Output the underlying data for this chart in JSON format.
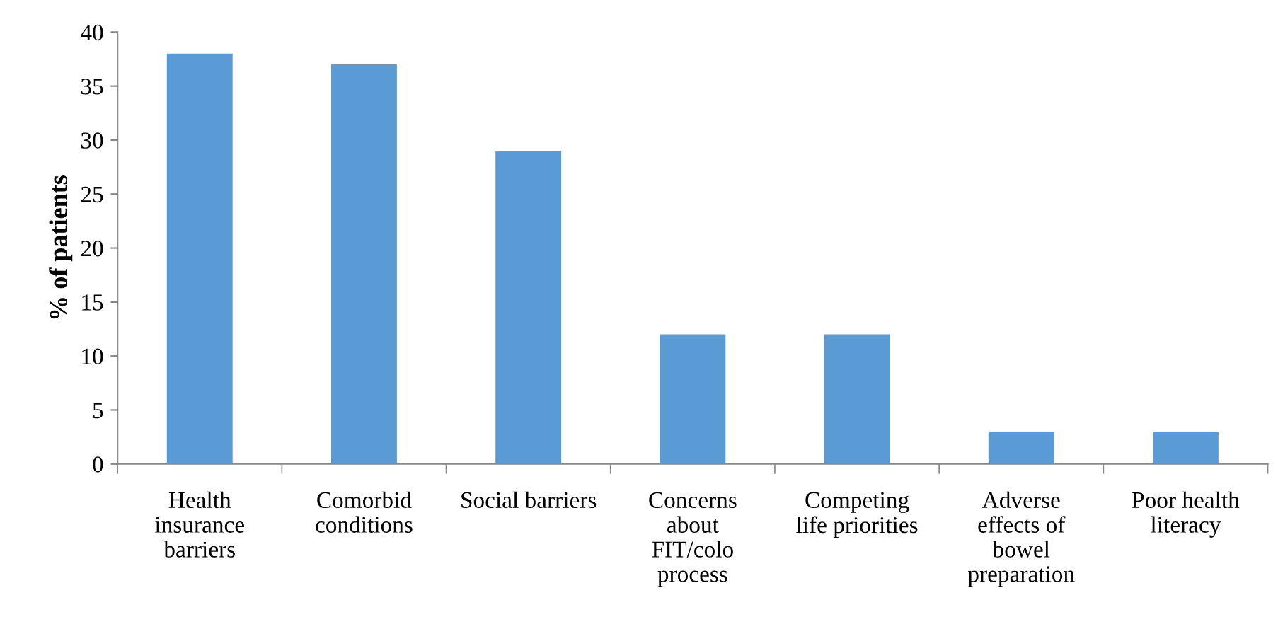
{
  "chart_data": {
    "type": "bar",
    "ylabel": "% of patients",
    "categories": [
      "Health\ninsurance\nbarriers",
      "Comorbid\nconditions",
      "Social barriers",
      "Concerns\nabout\nFIT/colo\nprocess",
      "Competing\nlife priorities",
      "Adverse\neffects of\nbowel\npreparation",
      "Poor health\nliteracy"
    ],
    "values": [
      38,
      37,
      29,
      12,
      12,
      3,
      3
    ],
    "color": "#5b9bd5",
    "ylim": [
      0,
      40
    ],
    "yticks": [
      0,
      5,
      10,
      15,
      20,
      25,
      30,
      35,
      40
    ],
    "grid": false,
    "legend": false
  }
}
